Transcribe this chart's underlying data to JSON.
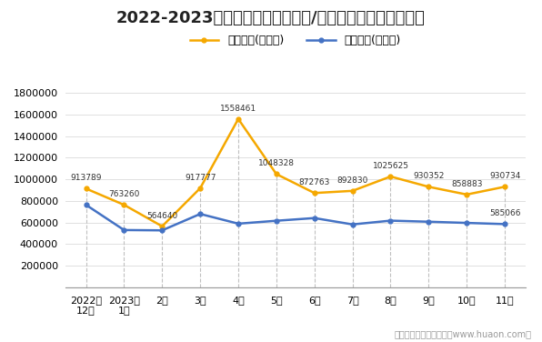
{
  "title": "2022-2023年广州市（境内目的地/货源地）进、出口额统计",
  "x_labels": [
    "2022年\n12月",
    "2023年\n1月",
    "2月",
    "3月",
    "4月",
    "5月",
    "6月",
    "7月",
    "8月",
    "9月",
    "10月",
    "11月"
  ],
  "export_values": [
    913789,
    763260,
    564640,
    917777,
    1558461,
    1048328,
    872763,
    892830,
    1025625,
    930352,
    858883,
    930734
  ],
  "import_values": [
    763260,
    530000,
    527000,
    679000,
    589000,
    616000,
    641000,
    582000,
    617000,
    607000,
    596000,
    585066
  ],
  "export_label": "出口总额(万美元)",
  "import_label": "进口总额(万美元)",
  "export_color": "#F5A800",
  "import_color": "#4472C4",
  "ylim": [
    0,
    1900000
  ],
  "yticks": [
    0,
    200000,
    400000,
    600000,
    800000,
    1000000,
    1200000,
    1400000,
    1600000,
    1800000
  ],
  "footer": "制图：华经产业研究院（www.huaon.com）",
  "bg_color": "#FFFFFF",
  "dashed_line_color": "#C0C0C0",
  "title_fontsize": 13,
  "legend_fontsize": 9,
  "tick_fontsize": 8,
  "annot_fontsize": 6.5
}
